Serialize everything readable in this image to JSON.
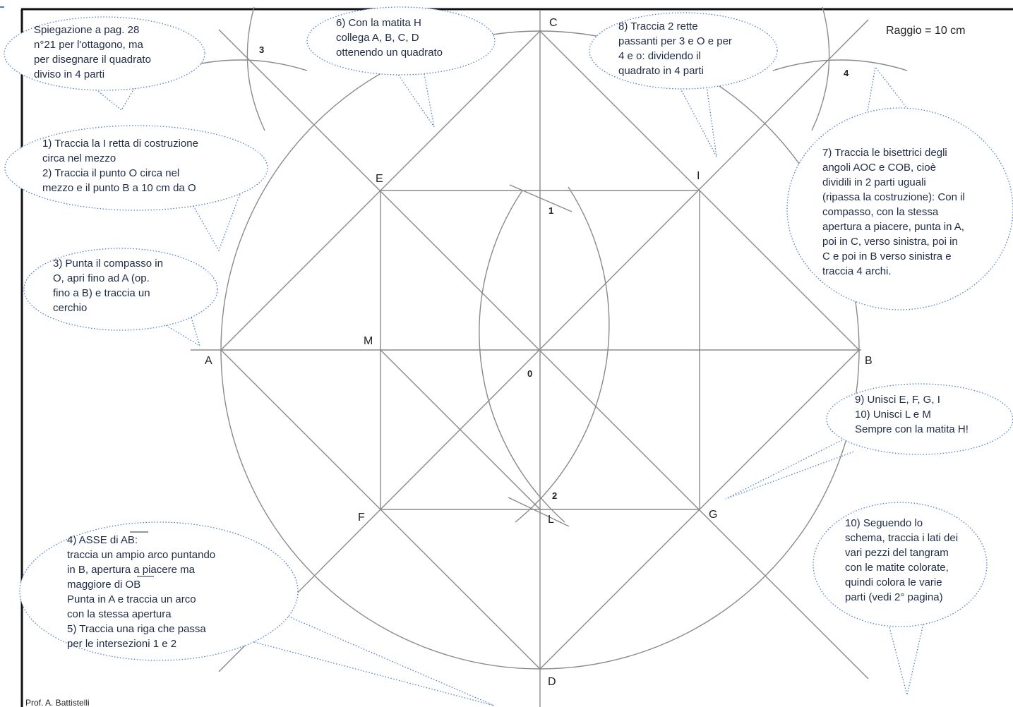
{
  "radius_label": "Raggio = 10 cm",
  "points": {
    "A": "A",
    "B": "B",
    "C": "C",
    "D": "D",
    "E": "E",
    "F": "F",
    "G": "G",
    "I": "I",
    "L": "L",
    "M": "M",
    "O": "0",
    "n1": "1",
    "n2": "2",
    "n3": "3",
    "n4": "4"
  },
  "bubbles": {
    "spiegazione": [
      "Spiegazione a pag. 28",
      "n°21 per l'ottagono, ma",
      "per disegnare il quadrato",
      "diviso in 4 parti"
    ],
    "step1_2": [
      "1) Traccia la I retta di costruzione",
      "circa nel mezzo",
      "2) Traccia il punto O circa nel",
      "mezzo e il punto B a 10 cm da O"
    ],
    "step3": [
      "3) Punta il compasso in",
      "O, apri fino ad A (op.",
      "fino a B) e traccia un",
      "cerchio"
    ],
    "step4_5": [
      "4) ASSE di AB:",
      "traccia un ampio arco puntando",
      "in B, apertura a piacere ma",
      "maggiore di OB",
      "Punta in  A e traccia un arco",
      "con la stessa apertura",
      "5) Traccia una riga che passa",
      "per le intersezioni 1 e 2"
    ],
    "step6": [
      "6) Con la matita H",
      "collega A, B, C, D",
      "ottenendo un quadrato"
    ],
    "step8": [
      "8) Traccia 2 rette",
      "passanti per 3 e O e per",
      "4 e o: dividendo il",
      "quadrato in 4 parti"
    ],
    "step7": [
      "7) Traccia le bisettrici degli",
      "angoli AOC e COB, cioè",
      "dividili  in 2 parti uguali",
      "(ripassa la costruzione): Con il",
      "compasso, con la stessa",
      "apertura a piacere, punta in A,",
      "poi in C, verso sinistra, poi in",
      "C e poi in B verso sinistra e",
      "traccia 4 archi."
    ],
    "step9_10": [
      "9) Unisci E, F, G, I",
      "10) Unisci L e M",
      "Sempre con la matita H!"
    ],
    "step10b": [
      "10) Seguendo lo",
      "schema, traccia i lati dei",
      "vari pezzi del tangram",
      "con le matite colorate,",
      "quindi colora le varie",
      "parti (vedi 2° pagina)"
    ]
  },
  "footer": "Prof. A. Battistelli"
}
